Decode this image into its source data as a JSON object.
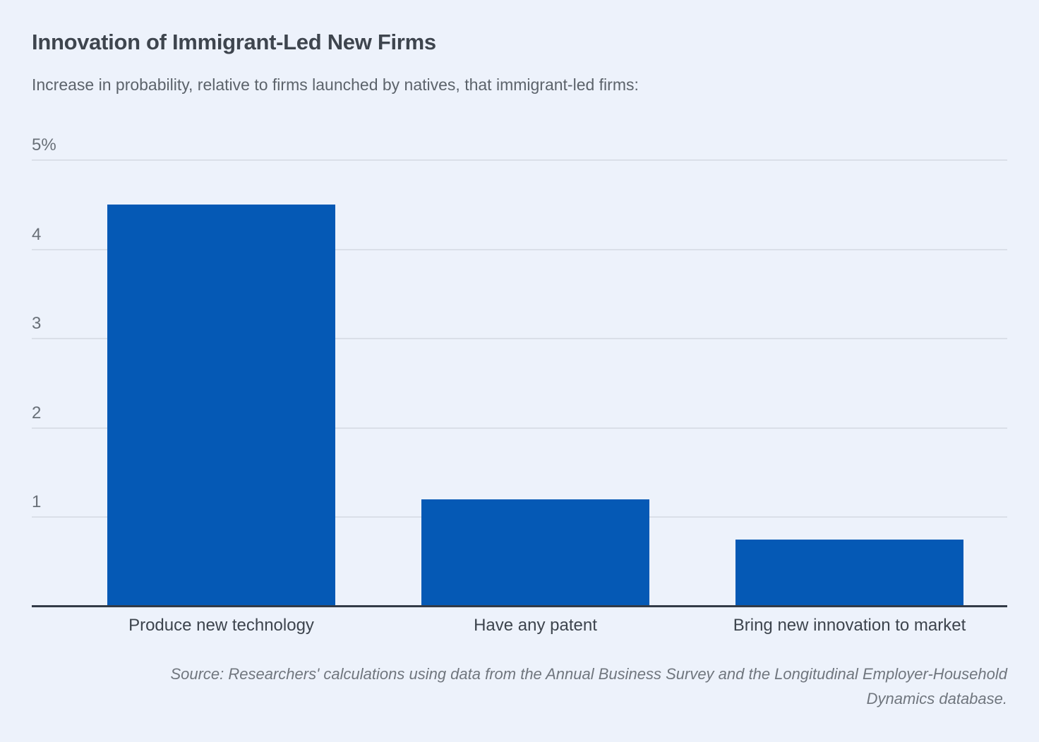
{
  "title": "Innovation of Immigrant-Led New Firms",
  "subtitle": "Increase in probability, relative to firms launched by natives, that immigrant-led firms:",
  "source": {
    "lines": [
      "Source: Researchers' calculations using data from the Annual Business Survey and the Longitudinal Employer-Household",
      "Dynamics database."
    ]
  },
  "colors": {
    "background": "#edf2fb",
    "bar": "#0559b5",
    "gridline": "#dadfe8",
    "axis_line": "#333b47",
    "title_text": "#3e454e",
    "subtitle_text": "#5c636b",
    "tick_text": "#697078",
    "category_text": "#3d444d",
    "source_text": "#70767e"
  },
  "chart_data": {
    "type": "bar",
    "categories": [
      "Produce new technology",
      "Have any patent",
      "Bring new innovation to market"
    ],
    "values": [
      4.5,
      1.2,
      0.75
    ],
    "title": "Innovation of Immigrant-Led New Firms",
    "xlabel": "",
    "ylabel": "",
    "ylim": [
      0,
      5
    ],
    "yticks": [
      {
        "value": 5,
        "label": "5%"
      },
      {
        "value": 4,
        "label": "4"
      },
      {
        "value": 3,
        "label": "3"
      },
      {
        "value": 2,
        "label": "2"
      },
      {
        "value": 1,
        "label": "1"
      }
    ],
    "grid": true,
    "legend_position": "none",
    "bar_color": "#0559b5"
  }
}
